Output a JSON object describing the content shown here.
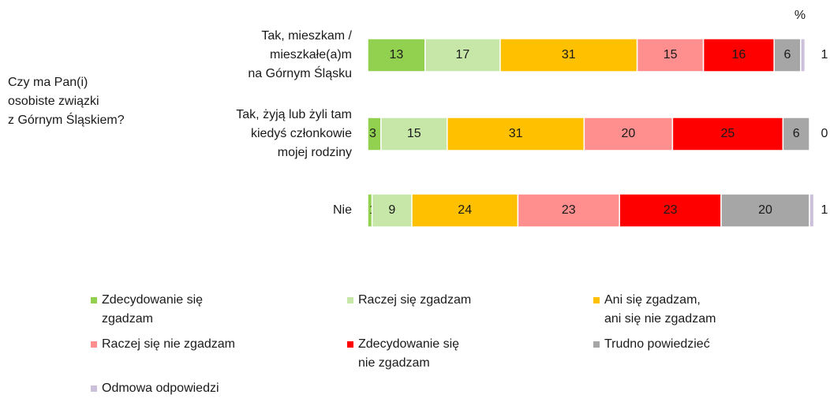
{
  "chart_data": {
    "type": "stacked-bar-horizontal",
    "ylabel": "Czy ma Pan(i)\nosobiste związki\nz Górnym Śląskiem?",
    "unit_label": "%",
    "categories": [
      "Tak, mieszkam /\nmieszkałe(a)m\nna Górnym Śląsku",
      "Tak, żyją lub żyli tam\nkiedyś członkowie\nmojej rodziny",
      "Nie"
    ],
    "series": [
      {
        "name": "Zdecydowanie się\nzgadzam",
        "color": "#92d050",
        "values": [
          13,
          3,
          1
        ]
      },
      {
        "name": "Raczej się zgadzam",
        "color": "#c6e7a8",
        "values": [
          17,
          15,
          9
        ]
      },
      {
        "name": "Ani się zgadzam,\nani się nie zgadzam",
        "color": "#ffc000",
        "values": [
          31,
          31,
          24
        ]
      },
      {
        "name": "Raczej się nie zgadzam",
        "color": "#ff8f8f",
        "values": [
          15,
          20,
          23
        ]
      },
      {
        "name": "Zdecydowanie się\nnie zgadzam",
        "color": "#ff0000",
        "values": [
          16,
          25,
          23
        ]
      },
      {
        "name": "Trudno powiedzieć",
        "color": "#a6a6a6",
        "values": [
          6,
          6,
          20
        ]
      },
      {
        "name": "Odmowa odpowiedzi",
        "color": "#ccc0da",
        "values": [
          1,
          0,
          1
        ]
      }
    ]
  }
}
